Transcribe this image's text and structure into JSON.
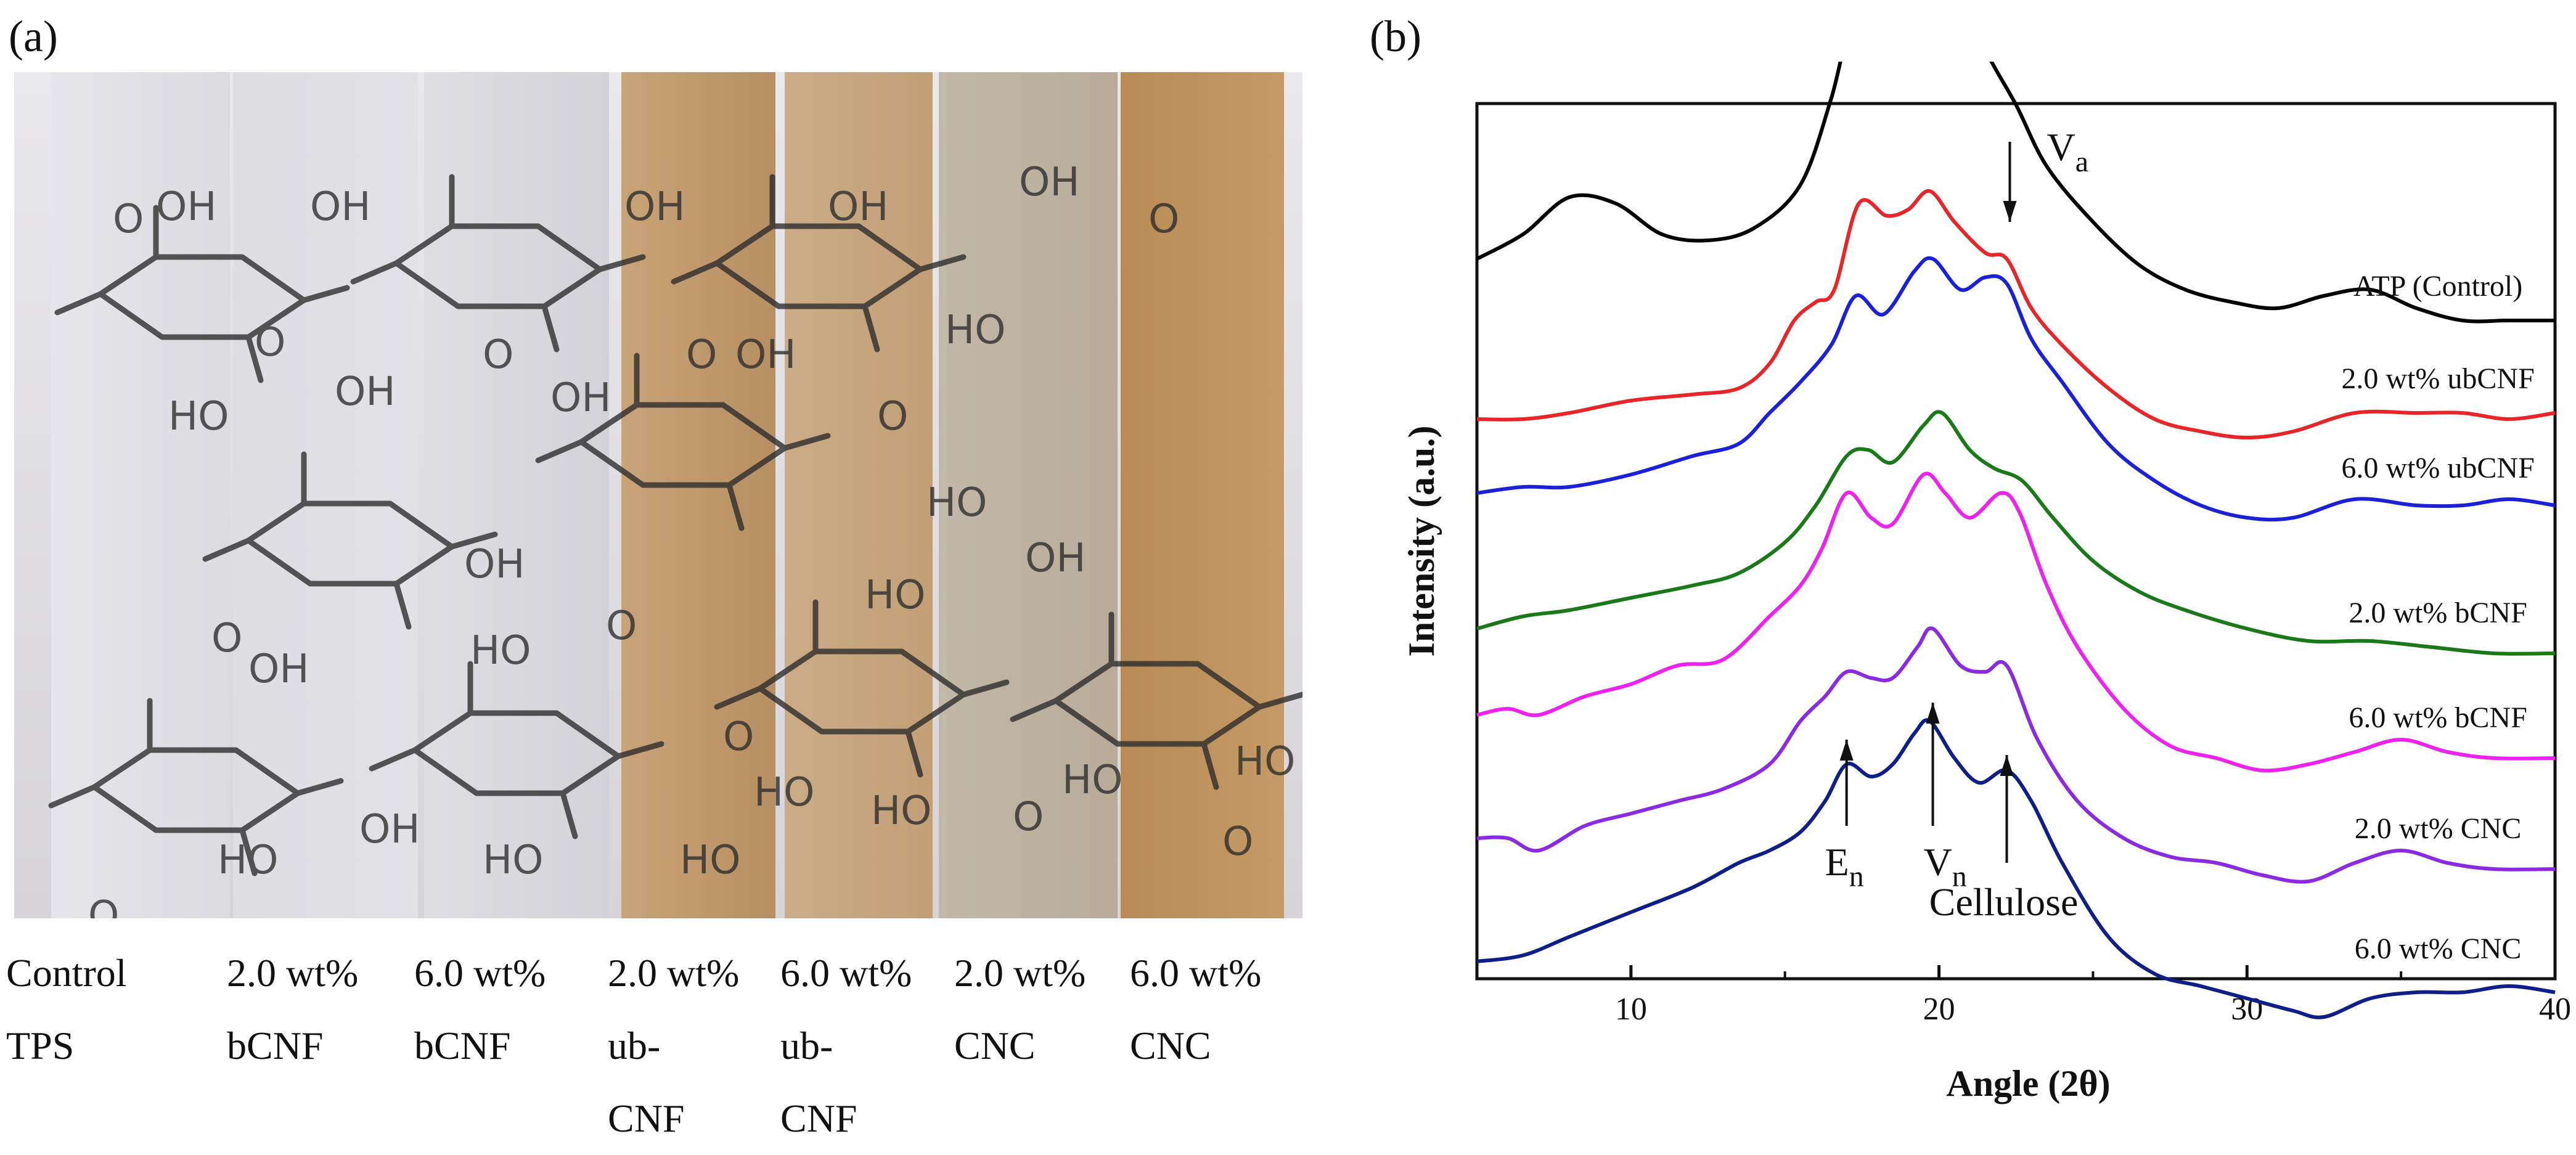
{
  "panel_a": {
    "label": "(a)",
    "captions": [
      [
        "Control",
        "TPS"
      ],
      [
        "2.0 wt%",
        "bCNF"
      ],
      [
        "6.0 wt%",
        "bCNF"
      ],
      [
        "2.0 wt%",
        "ub-",
        "CNF"
      ],
      [
        "6.0 wt%",
        "ub-",
        "CNF"
      ],
      [
        "2.0 wt%",
        "CNC"
      ],
      [
        "6.0 wt%",
        "CNC"
      ]
    ],
    "molecule_labels": [
      "OH",
      "OH",
      "OH",
      "OH",
      "OH",
      "OH",
      "HO",
      "OH",
      "OH",
      "HO",
      "OH",
      "HO",
      "HO",
      "OH",
      "OH",
      "HO",
      "HO",
      "OH",
      "HO",
      "HO",
      "HO",
      "HO",
      "HO",
      "HO",
      "O",
      "O",
      "O",
      "O",
      "O",
      "O",
      "O",
      "O",
      "O",
      "O",
      "O",
      "O"
    ]
  },
  "panel_b": {
    "label": "(b)",
    "chart_data": {
      "type": "line",
      "xlabel": "Angle (2θ)",
      "ylabel": "Intensity (a.u.)",
      "xlim": [
        5,
        40
      ],
      "xticks": [
        10,
        20,
        30,
        40
      ],
      "grid": false,
      "y_ticks_shown": false,
      "series": [
        {
          "name": "ATP (Control)",
          "color": "#000000",
          "points": [
            [
              5,
              0.38
            ],
            [
              6.5,
              0.42
            ],
            [
              8,
              0.48
            ],
            [
              9.5,
              0.47
            ],
            [
              11,
              0.42
            ],
            [
              12.5,
              0.41
            ],
            [
              14,
              0.43
            ],
            [
              15.5,
              0.5
            ],
            [
              16.5,
              0.64
            ],
            [
              17.2,
              0.77
            ],
            [
              18,
              0.76
            ],
            [
              18.8,
              0.82
            ],
            [
              19.7,
              0.9
            ],
            [
              20.5,
              0.84
            ],
            [
              21.5,
              0.72
            ],
            [
              22.5,
              0.63
            ],
            [
              23.5,
              0.53
            ],
            [
              25,
              0.44
            ],
            [
              26.5,
              0.37
            ],
            [
              28,
              0.33
            ],
            [
              29.5,
              0.31
            ],
            [
              31,
              0.3
            ],
            [
              32.5,
              0.32
            ],
            [
              34,
              0.33
            ],
            [
              35.5,
              0.3
            ],
            [
              37,
              0.28
            ],
            [
              38.5,
              0.28
            ],
            [
              40,
              0.28
            ]
          ]
        },
        {
          "name": "2.0 wt% ubCNF",
          "color": "#e8262a",
          "points": [
            [
              5,
              0.12
            ],
            [
              6.5,
              0.12
            ],
            [
              8,
              0.13
            ],
            [
              10,
              0.15
            ],
            [
              12,
              0.16
            ],
            [
              13.5,
              0.17
            ],
            [
              14.5,
              0.21
            ],
            [
              15.3,
              0.28
            ],
            [
              16,
              0.31
            ],
            [
              16.6,
              0.33
            ],
            [
              17.4,
              0.47
            ],
            [
              18.3,
              0.45
            ],
            [
              19,
              0.46
            ],
            [
              19.7,
              0.49
            ],
            [
              20.5,
              0.44
            ],
            [
              21.5,
              0.39
            ],
            [
              22.2,
              0.38
            ],
            [
              23,
              0.3
            ],
            [
              24,
              0.24
            ],
            [
              25.5,
              0.17
            ],
            [
              27,
              0.12
            ],
            [
              28.5,
              0.1
            ],
            [
              30,
              0.09
            ],
            [
              31.5,
              0.1
            ],
            [
              33.5,
              0.13
            ],
            [
              35.5,
              0.13
            ],
            [
              37,
              0.13
            ],
            [
              38.5,
              0.12
            ],
            [
              40,
              0.13
            ]
          ]
        },
        {
          "name": "6.0 wt% ubCNF",
          "color": "#1c21d8",
          "points": [
            [
              5,
              0.0
            ],
            [
              6.5,
              0.01
            ],
            [
              8,
              0.01
            ],
            [
              10,
              0.03
            ],
            [
              12,
              0.06
            ],
            [
              13.5,
              0.08
            ],
            [
              14.5,
              0.13
            ],
            [
              15.5,
              0.18
            ],
            [
              16.5,
              0.24
            ],
            [
              17.3,
              0.32
            ],
            [
              18.2,
              0.29
            ],
            [
              19.2,
              0.36
            ],
            [
              19.8,
              0.38
            ],
            [
              20.7,
              0.33
            ],
            [
              21.5,
              0.35
            ],
            [
              22.2,
              0.34
            ],
            [
              23,
              0.25
            ],
            [
              24,
              0.18
            ],
            [
              25.5,
              0.08
            ],
            [
              27,
              0.02
            ],
            [
              28.5,
              -0.02
            ],
            [
              30,
              -0.04
            ],
            [
              31.5,
              -0.04
            ],
            [
              33.5,
              -0.01
            ],
            [
              35.5,
              -0.02
            ],
            [
              37,
              -0.02
            ],
            [
              38.5,
              -0.01
            ],
            [
              40,
              -0.02
            ]
          ]
        },
        {
          "name": "2.0 wt% bCNF",
          "color": "#1a7a1a",
          "points": [
            [
              5,
              -0.22
            ],
            [
              6.5,
              -0.2
            ],
            [
              8,
              -0.19
            ],
            [
              10,
              -0.17
            ],
            [
              12,
              -0.15
            ],
            [
              13.5,
              -0.13
            ],
            [
              15,
              -0.08
            ],
            [
              16,
              -0.02
            ],
            [
              17,
              0.06
            ],
            [
              17.7,
              0.07
            ],
            [
              18.5,
              0.05
            ],
            [
              19.5,
              0.11
            ],
            [
              20.1,
              0.13
            ],
            [
              21,
              0.07
            ],
            [
              21.8,
              0.04
            ],
            [
              22.7,
              0.02
            ],
            [
              23.7,
              -0.04
            ],
            [
              25,
              -0.11
            ],
            [
              26.5,
              -0.16
            ],
            [
              28,
              -0.19
            ],
            [
              30,
              -0.22
            ],
            [
              32,
              -0.24
            ],
            [
              34,
              -0.24
            ],
            [
              36,
              -0.25
            ],
            [
              38,
              -0.26
            ],
            [
              40,
              -0.26
            ]
          ]
        },
        {
          "name": "6.0 wt% bCNF",
          "color": "#ee22ee",
          "points": [
            [
              5,
              -0.36
            ],
            [
              6,
              -0.35
            ],
            [
              7,
              -0.36
            ],
            [
              8.5,
              -0.33
            ],
            [
              10,
              -0.31
            ],
            [
              11.5,
              -0.28
            ],
            [
              13,
              -0.27
            ],
            [
              14.5,
              -0.2
            ],
            [
              15.5,
              -0.15
            ],
            [
              16.2,
              -0.09
            ],
            [
              17,
              0.0
            ],
            [
              17.8,
              -0.04
            ],
            [
              18.5,
              -0.05
            ],
            [
              19.5,
              0.03
            ],
            [
              20.2,
              0.0
            ],
            [
              21,
              -0.04
            ],
            [
              22,
              0.0
            ],
            [
              22.6,
              -0.03
            ],
            [
              23.5,
              -0.15
            ],
            [
              24.5,
              -0.25
            ],
            [
              26,
              -0.35
            ],
            [
              27.5,
              -0.41
            ],
            [
              29,
              -0.43
            ],
            [
              30.5,
              -0.45
            ],
            [
              32,
              -0.44
            ],
            [
              33.5,
              -0.42
            ],
            [
              35,
              -0.4
            ],
            [
              36.5,
              -0.42
            ],
            [
              38,
              -0.43
            ],
            [
              40,
              -0.43
            ]
          ]
        },
        {
          "name": "2.0 wt% CNC",
          "color": "#8a2be2",
          "points": [
            [
              5,
              -0.56
            ],
            [
              6,
              -0.56
            ],
            [
              7,
              -0.58
            ],
            [
              8.5,
              -0.54
            ],
            [
              10,
              -0.52
            ],
            [
              11.5,
              -0.5
            ],
            [
              13,
              -0.48
            ],
            [
              14.5,
              -0.44
            ],
            [
              15.5,
              -0.37
            ],
            [
              16.3,
              -0.33
            ],
            [
              17,
              -0.29
            ],
            [
              17.8,
              -0.3
            ],
            [
              18.5,
              -0.3
            ],
            [
              19.3,
              -0.25
            ],
            [
              19.8,
              -0.22
            ],
            [
              20.7,
              -0.28
            ],
            [
              21.5,
              -0.29
            ],
            [
              22.2,
              -0.28
            ],
            [
              23.2,
              -0.4
            ],
            [
              24.5,
              -0.5
            ],
            [
              26,
              -0.56
            ],
            [
              27.5,
              -0.59
            ],
            [
              29,
              -0.6
            ],
            [
              30.5,
              -0.62
            ],
            [
              32,
              -0.63
            ],
            [
              33.5,
              -0.6
            ],
            [
              35,
              -0.58
            ],
            [
              36.5,
              -0.6
            ],
            [
              38,
              -0.61
            ],
            [
              40,
              -0.61
            ]
          ]
        },
        {
          "name": "6.0 wt% CNC",
          "color": "#0f1f87",
          "points": [
            [
              5,
              -0.76
            ],
            [
              6.5,
              -0.75
            ],
            [
              8,
              -0.72
            ],
            [
              10,
              -0.68
            ],
            [
              12,
              -0.64
            ],
            [
              13.5,
              -0.6
            ],
            [
              14.5,
              -0.58
            ],
            [
              15.5,
              -0.55
            ],
            [
              16.3,
              -0.5
            ],
            [
              17,
              -0.44
            ],
            [
              17.8,
              -0.46
            ],
            [
              18.5,
              -0.44
            ],
            [
              19.2,
              -0.39
            ],
            [
              19.7,
              -0.37
            ],
            [
              20.5,
              -0.43
            ],
            [
              21.3,
              -0.47
            ],
            [
              22.2,
              -0.45
            ],
            [
              23,
              -0.5
            ],
            [
              24,
              -0.6
            ],
            [
              25.5,
              -0.72
            ],
            [
              27,
              -0.78
            ],
            [
              28.5,
              -0.8
            ],
            [
              30,
              -0.82
            ],
            [
              31.5,
              -0.84
            ],
            [
              32.5,
              -0.85
            ],
            [
              34,
              -0.82
            ],
            [
              35.5,
              -0.81
            ],
            [
              37,
              -0.81
            ],
            [
              38.5,
              -0.8
            ],
            [
              40,
              -0.81
            ]
          ]
        }
      ],
      "series_labels": [
        "ATP (Control)",
        "2.0 wt% ubCNF",
        "6.0 wt% ubCNF",
        "2.0 wt% bCNF",
        "6.0 wt% bCNF",
        "2.0 wt% CNC",
        "6.0 wt% CNC"
      ],
      "annotations": [
        {
          "text": "V",
          "sub": "a",
          "arrow_x": 22.3
        },
        {
          "text": "E",
          "sub": "n",
          "arrow_x": 17.0
        },
        {
          "text": "V",
          "sub": "n",
          "arrow_x": 19.8
        },
        {
          "text": "Cellulose",
          "sub": "",
          "arrow_x": 22.2
        }
      ]
    }
  }
}
